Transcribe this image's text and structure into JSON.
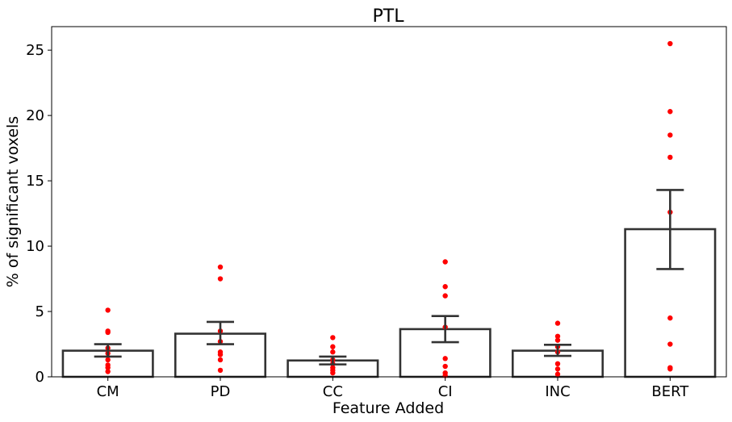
{
  "chart_data": {
    "type": "bar",
    "title": "PTL",
    "xlabel": "Feature Added",
    "ylabel": "% of significant voxels",
    "categories": [
      "CM",
      "PD",
      "CC",
      "CI",
      "INC",
      "BERT"
    ],
    "values": [
      2.0,
      3.3,
      1.25,
      3.65,
      2.0,
      11.3
    ],
    "error_low": [
      1.55,
      2.5,
      0.95,
      2.65,
      1.6,
      8.25
    ],
    "error_high": [
      2.5,
      4.2,
      1.55,
      4.65,
      2.45,
      14.3
    ],
    "points": [
      [
        5.1,
        3.5,
        3.4,
        2.2,
        1.8,
        1.3,
        0.9,
        0.7,
        0.4
      ],
      [
        8.4,
        7.5,
        3.5,
        2.7,
        1.9,
        1.7,
        1.3,
        0.5
      ],
      [
        3.0,
        2.3,
        1.9,
        1.3,
        1.0,
        0.7,
        0.5,
        0.3
      ],
      [
        8.8,
        6.9,
        6.2,
        3.8,
        1.4,
        0.8,
        0.3,
        0.1
      ],
      [
        4.1,
        3.1,
        2.8,
        2.3,
        1.9,
        1.0,
        0.6,
        0.2
      ],
      [
        25.5,
        20.3,
        18.5,
        16.8,
        12.6,
        4.5,
        2.5,
        0.7,
        0.6
      ]
    ],
    "ylim": [
      0,
      26.8
    ],
    "yticks": [
      0,
      5,
      10,
      15,
      20,
      25
    ],
    "bar_fill": "#ffffff",
    "bar_edge": "#333333",
    "point_color": "#ff0000",
    "grid": false
  }
}
